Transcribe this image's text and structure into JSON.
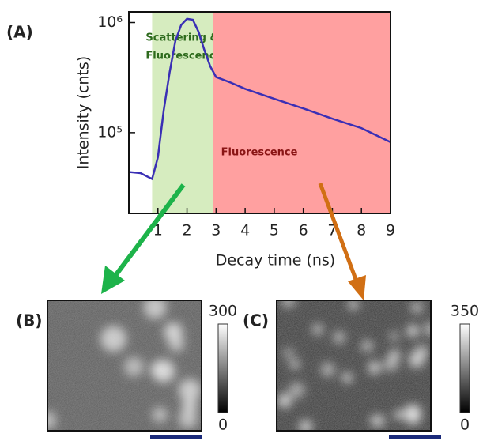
{
  "panel_label": "(A)",
  "chart_data": {
    "type": "line",
    "log_y": true,
    "ylabel": "Intensity (cnts)",
    "xlabel": "Decay time (ns)",
    "xlim": [
      0,
      9
    ],
    "xticks": [
      1,
      2,
      3,
      4,
      5,
      6,
      7,
      8,
      9
    ],
    "ylim": [
      18500,
      1250000
    ],
    "yticks": [
      {
        "value": 100000,
        "label": "10⁵"
      },
      {
        "value": 1000000,
        "label": "10⁶"
      }
    ],
    "regions": [
      {
        "label": [
          "Scattering &",
          "Fluorescence"
        ],
        "xlim": [
          0.8,
          2.9
        ],
        "color": "#d6ecbf",
        "label_color": "#2d6a1c"
      },
      {
        "label": [
          "Fluorescence"
        ],
        "xlim": [
          2.9,
          9
        ],
        "color": "#ffa0a0",
        "label_color": "#8a1515"
      }
    ],
    "series": [
      {
        "color": "#3a2fb5",
        "x": [
          0,
          0.4,
          0.8,
          1.0,
          1.2,
          1.4,
          1.6,
          1.8,
          2.0,
          2.2,
          2.4,
          2.6,
          2.8,
          3.0,
          3.5,
          4,
          5,
          6,
          7,
          8,
          9
        ],
        "values": [
          44000,
          43000,
          38000,
          60000,
          160000,
          350000,
          680000,
          950000,
          1080000,
          1060000,
          820000,
          560000,
          400000,
          320000,
          285000,
          250000,
          203000,
          166000,
          134000,
          110000,
          82000
        ]
      }
    ]
  },
  "images": [
    {
      "label": "(B)",
      "colorbar_ticks": [
        0,
        300
      ]
    },
    {
      "label": "(C)",
      "colorbar_ticks": [
        0,
        350
      ]
    }
  ]
}
